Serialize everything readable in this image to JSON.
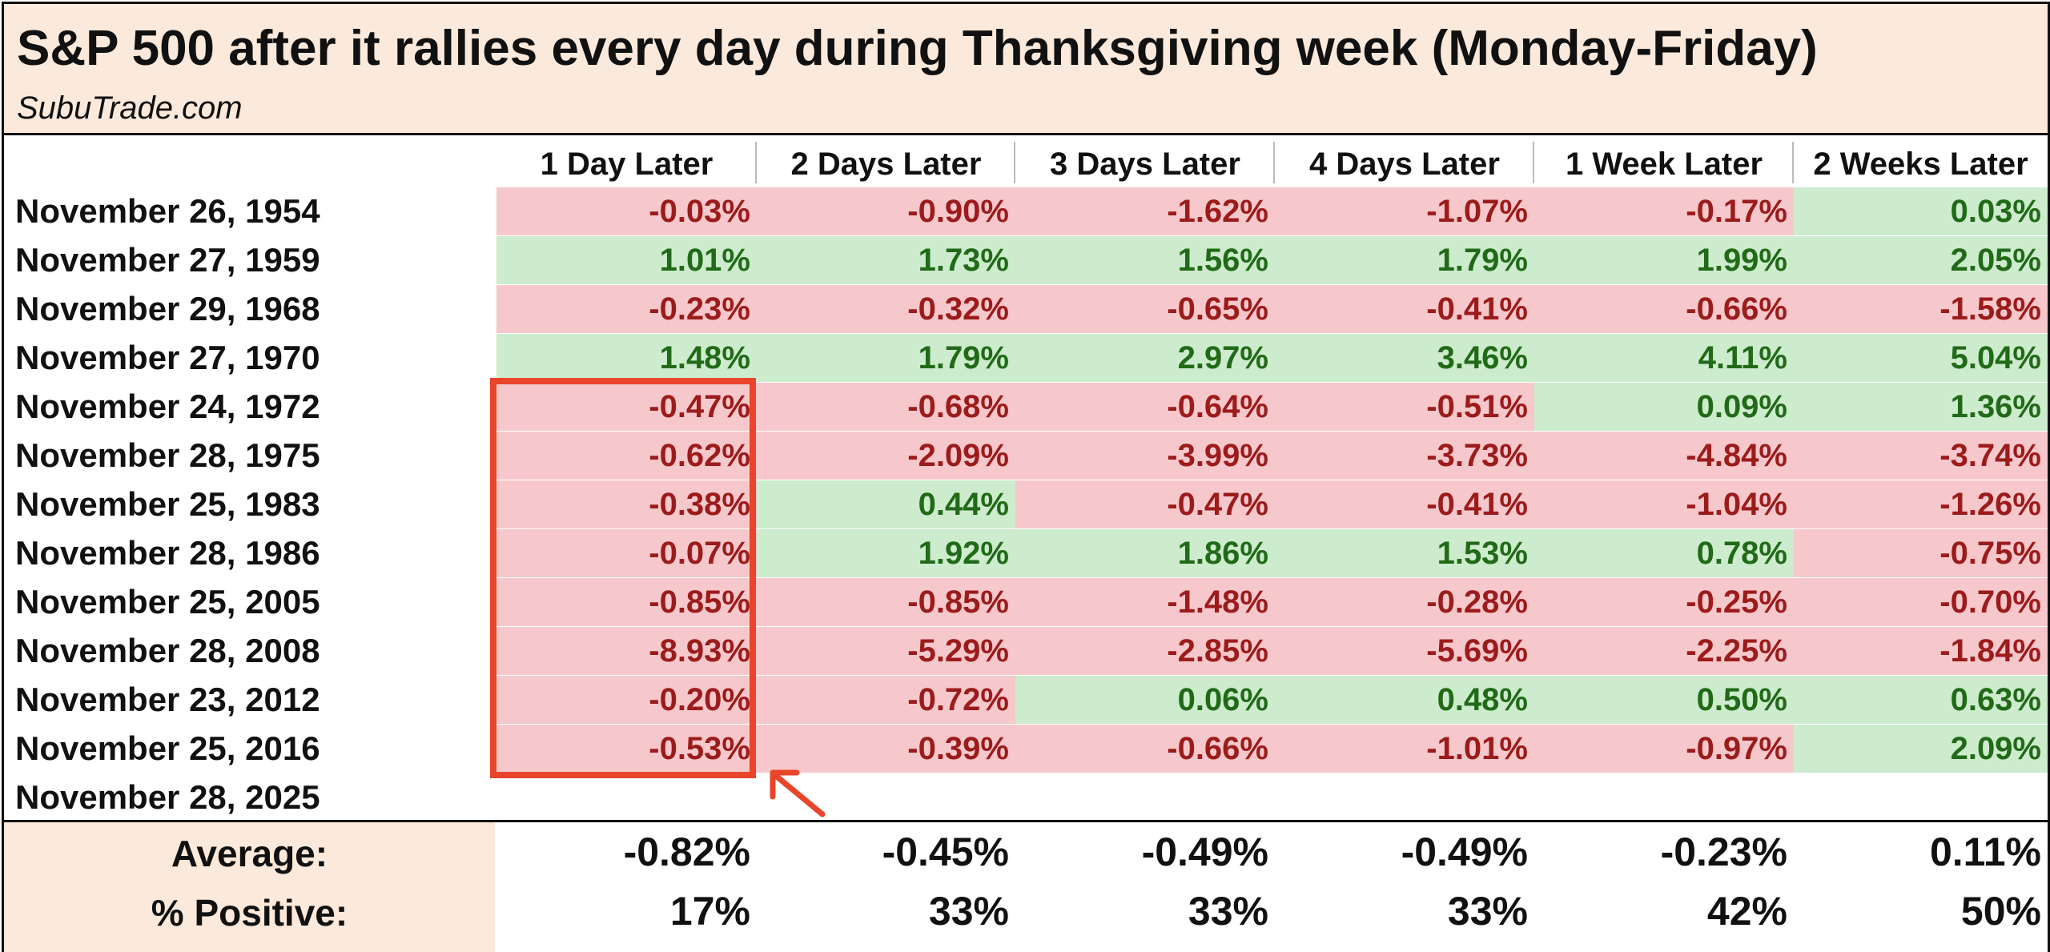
{
  "chart_data": {
    "type": "table",
    "title": "S&P 500 after it rallies every day during Thanksgiving week (Monday-Friday)",
    "subtitle": "SubuTrade.com",
    "columns": [
      "1 Day Later",
      "2 Days Later",
      "3 Days Later",
      "4 Days Later",
      "1 Week Later",
      "2 Weeks Later"
    ],
    "rows": [
      {
        "date": "November 26, 1954",
        "values": [
          "-0.03%",
          "-0.90%",
          "-1.62%",
          "-1.07%",
          "-0.17%",
          "0.03%"
        ]
      },
      {
        "date": "November 27, 1959",
        "values": [
          "1.01%",
          "1.73%",
          "1.56%",
          "1.79%",
          "1.99%",
          "2.05%"
        ]
      },
      {
        "date": "November 29, 1968",
        "values": [
          "-0.23%",
          "-0.32%",
          "-0.65%",
          "-0.41%",
          "-0.66%",
          "-1.58%"
        ]
      },
      {
        "date": "November 27, 1970",
        "values": [
          "1.48%",
          "1.79%",
          "2.97%",
          "3.46%",
          "4.11%",
          "5.04%"
        ]
      },
      {
        "date": "November 24, 1972",
        "values": [
          "-0.47%",
          "-0.68%",
          "-0.64%",
          "-0.51%",
          "0.09%",
          "1.36%"
        ]
      },
      {
        "date": "November 28, 1975",
        "values": [
          "-0.62%",
          "-2.09%",
          "-3.99%",
          "-3.73%",
          "-4.84%",
          "-3.74%"
        ]
      },
      {
        "date": "November 25, 1983",
        "values": [
          "-0.38%",
          "0.44%",
          "-0.47%",
          "-0.41%",
          "-1.04%",
          "-1.26%"
        ]
      },
      {
        "date": "November 28, 1986",
        "values": [
          "-0.07%",
          "1.92%",
          "1.86%",
          "1.53%",
          "0.78%",
          "-0.75%"
        ]
      },
      {
        "date": "November 25, 2005",
        "values": [
          "-0.85%",
          "-0.85%",
          "-1.48%",
          "-0.28%",
          "-0.25%",
          "-0.70%"
        ]
      },
      {
        "date": "November 28, 2008",
        "values": [
          "-8.93%",
          "-5.29%",
          "-2.85%",
          "-5.69%",
          "-2.25%",
          "-1.84%"
        ]
      },
      {
        "date": "November 23, 2012",
        "values": [
          "-0.20%",
          "-0.72%",
          "0.06%",
          "0.48%",
          "0.50%",
          "0.63%"
        ]
      },
      {
        "date": "November 25, 2016",
        "values": [
          "-0.53%",
          "-0.39%",
          "-0.66%",
          "-1.01%",
          "-0.97%",
          "2.09%"
        ]
      },
      {
        "date": "November 28, 2025",
        "values": []
      }
    ],
    "summary": [
      {
        "label": "Average:",
        "values": [
          "-0.82%",
          "-0.45%",
          "-0.49%",
          "-0.49%",
          "-0.23%",
          "0.11%"
        ]
      },
      {
        "label": "% Positive:",
        "values": [
          "17%",
          "33%",
          "33%",
          "33%",
          "42%",
          "50%"
        ]
      }
    ],
    "colors": {
      "negative_bg": "#f6c8cc",
      "negative_text": "#9c1b1b",
      "positive_bg": "#cdebcd",
      "positive_text": "#216a18",
      "header_bg": "#fbe9db",
      "highlight": "#e8452b"
    }
  }
}
